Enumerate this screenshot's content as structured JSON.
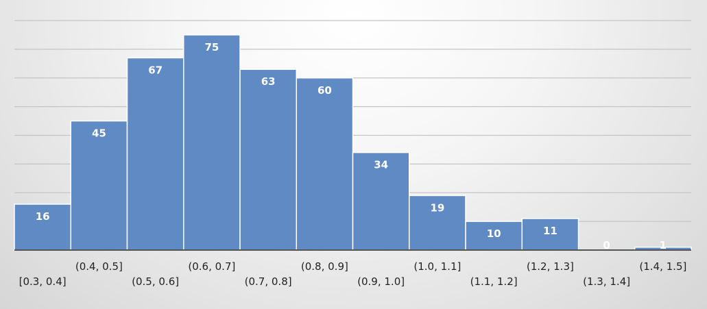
{
  "chart_data": {
    "type": "bar",
    "title": "",
    "xlabel": "",
    "ylabel": "",
    "categories": [
      "[0.3, 0.4]",
      "(0.4, 0.5]",
      "(0.5, 0.6]",
      "(0.6, 0.7]",
      "(0.7, 0.8]",
      "(0.8, 0.9]",
      "(0.9, 1.0]",
      "(1.0, 1.1]",
      "(1.1, 1.2]",
      "(1.2, 1.3]",
      "(1.3, 1.4]",
      "(1.4, 1.5]"
    ],
    "values": [
      16,
      45,
      67,
      75,
      63,
      60,
      34,
      19,
      10,
      11,
      0,
      1
    ],
    "ylim": [
      0,
      80
    ],
    "grid": true,
    "gridline_step": 10,
    "data_labels": true,
    "legend": "none",
    "colors": {
      "bar": "#5f8ac4",
      "bar_border": "#ffffff",
      "label": "#ffffff",
      "grid": "#c4c4c4",
      "axis": "#555555"
    }
  }
}
